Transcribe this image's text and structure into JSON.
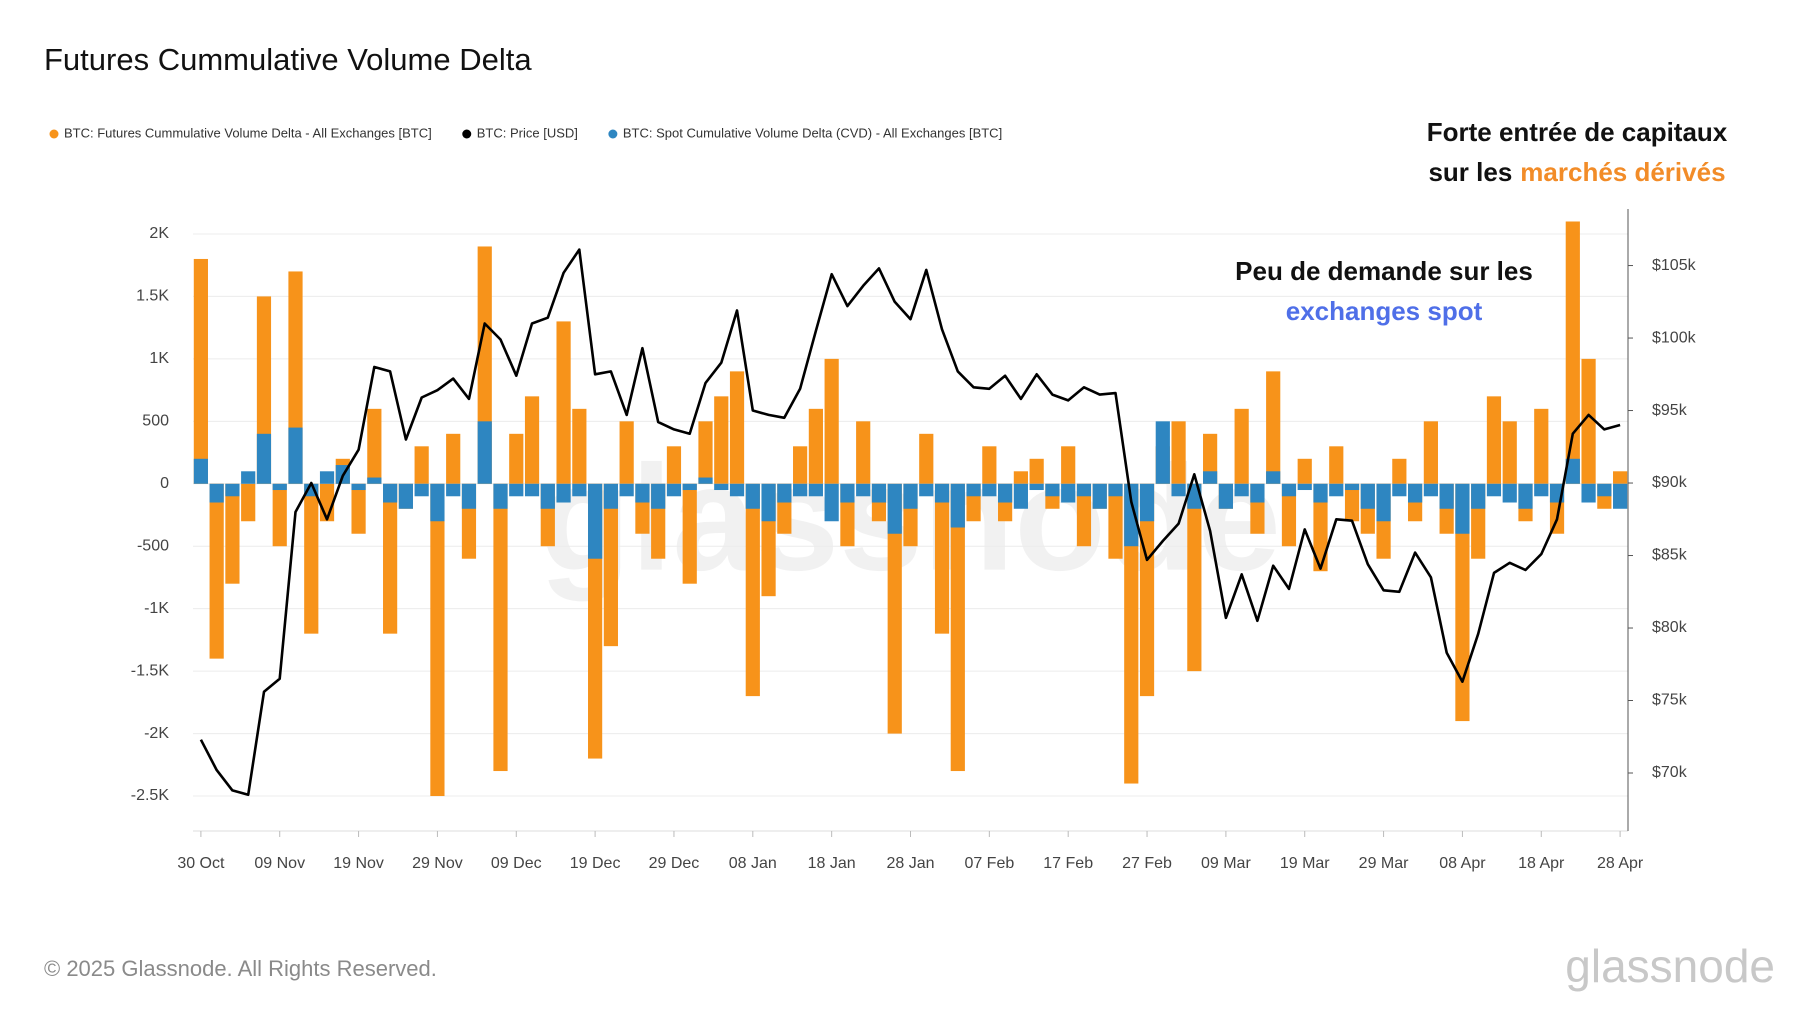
{
  "chart_data": {
    "type": "bar-line",
    "title": "Futures Cummulative Volume Delta",
    "watermark": "glassnode",
    "logo": "glassnode",
    "footer": "© 2025 Glassnode. All Rights Reserved.",
    "annotations": [
      {
        "lines": [
          [
            "Forte entrée de capitaux"
          ],
          [
            "sur les",
            "marchés dérivés"
          ]
        ],
        "colors": [
          "#111111",
          "#f28c28"
        ]
      },
      {
        "lines": [
          [
            "Peu de demande sur les"
          ],
          [
            "exchanges spot"
          ]
        ],
        "colors": [
          "#111111",
          "#4f6fe8"
        ]
      }
    ],
    "x": [
      0,
      2,
      4,
      6,
      8,
      10,
      12,
      14,
      16,
      18,
      20,
      22,
      24,
      26,
      28,
      30,
      32,
      34,
      36,
      38,
      40,
      42,
      44,
      46,
      48,
      50,
      52,
      54,
      56,
      58,
      60,
      62,
      64,
      66,
      68,
      70,
      72,
      74,
      76,
      78,
      80,
      82,
      84,
      86,
      88,
      90,
      92,
      94,
      96,
      98,
      100,
      102,
      104,
      106,
      108,
      110,
      112,
      114,
      116,
      118,
      120,
      122,
      124,
      126,
      128,
      130,
      132,
      134,
      136,
      138,
      140,
      142,
      144,
      146,
      148,
      150,
      152,
      154,
      156,
      158,
      160,
      162,
      164,
      166,
      168,
      170,
      172,
      174,
      176,
      178,
      180
    ],
    "xlim": [
      -1,
      181
    ],
    "xticks": [
      {
        "value": 0,
        "label": "30 Oct"
      },
      {
        "value": 10,
        "label": "09 Nov"
      },
      {
        "value": 20,
        "label": "19 Nov"
      },
      {
        "value": 30,
        "label": "29 Nov"
      },
      {
        "value": 40,
        "label": "09 Dec"
      },
      {
        "value": 50,
        "label": "19 Dec"
      },
      {
        "value": 60,
        "label": "29 Dec"
      },
      {
        "value": 70,
        "label": "08 Jan"
      },
      {
        "value": 80,
        "label": "18 Jan"
      },
      {
        "value": 90,
        "label": "28 Jan"
      },
      {
        "value": 100,
        "label": "07 Feb"
      },
      {
        "value": 110,
        "label": "17 Feb"
      },
      {
        "value": 120,
        "label": "27 Feb"
      },
      {
        "value": 130,
        "label": "09 Mar"
      },
      {
        "value": 140,
        "label": "19 Mar"
      },
      {
        "value": 150,
        "label": "29 Mar"
      },
      {
        "value": 160,
        "label": "08 Apr"
      },
      {
        "value": 170,
        "label": "18 Apr"
      },
      {
        "value": 180,
        "label": "28 Apr"
      }
    ],
    "ylim": [
      -2780,
      2200
    ],
    "yticks": [
      {
        "value": 2000,
        "label": "2K"
      },
      {
        "value": 1500,
        "label": "1.5K"
      },
      {
        "value": 1000,
        "label": "1K"
      },
      500,
      0,
      -500,
      {
        "value": -1000,
        "label": "-1K"
      },
      {
        "value": -1500,
        "label": "-1.5K"
      },
      {
        "value": -2000,
        "label": "-2K"
      },
      {
        "value": -2500,
        "label": "-2.5K"
      }
    ],
    "y2lim": [
      66000,
      108900
    ],
    "y2ticks": [
      {
        "value": 105000,
        "label": "$105k"
      },
      {
        "value": 100000,
        "label": "$100k"
      },
      {
        "value": 95000,
        "label": "$95k"
      },
      {
        "value": 90000,
        "label": "$90k"
      },
      {
        "value": 85000,
        "label": "$85k"
      },
      {
        "value": 80000,
        "label": "$80k"
      },
      {
        "value": 75000,
        "label": "$75k"
      },
      {
        "value": 70000,
        "label": "$70k"
      }
    ],
    "grid": true,
    "series": [
      {
        "name": "BTC: Futures Cummulative Volume Delta - All Exchanges [BTC]",
        "color": "#f7931a",
        "kind": "bar",
        "values": [
          1800,
          -1400,
          -800,
          -300,
          1500,
          -500,
          1700,
          -1200,
          -300,
          200,
          -400,
          600,
          -1200,
          -200,
          300,
          -2500,
          400,
          -600,
          1900,
          -2300,
          400,
          700,
          -500,
          1300,
          600,
          -2200,
          -1300,
          500,
          -400,
          -600,
          300,
          -800,
          500,
          700,
          900,
          -1700,
          -900,
          -400,
          300,
          600,
          1000,
          -500,
          500,
          -300,
          -2000,
          -500,
          400,
          -1200,
          -2300,
          -300,
          300,
          -300,
          100,
          200,
          -200,
          300,
          -500,
          -200,
          -600,
          -2400,
          -1700,
          300,
          500,
          -1500,
          400,
          -200,
          600,
          -400,
          900,
          -500,
          200,
          -700,
          300,
          -300,
          -400,
          -600,
          200,
          -300,
          500,
          -400,
          -1900,
          -600,
          700,
          500,
          -300,
          600,
          -400,
          2100,
          1000,
          -200,
          100
        ]
      },
      {
        "name": "BTC: Price [USD]",
        "color": "#000000",
        "kind": "line",
        "axis": "y2",
        "values": [
          72300,
          70200,
          68800,
          68500,
          75600,
          76500,
          88000,
          90000,
          87500,
          90500,
          92300,
          98000,
          97700,
          93000,
          95900,
          96400,
          97200,
          95800,
          101000,
          99900,
          97400,
          101000,
          101400,
          104500,
          106100,
          97500,
          97700,
          94700,
          99300,
          94200,
          93700,
          93400,
          96900,
          98300,
          101900,
          95000,
          94700,
          94500,
          96500,
          100500,
          104400,
          102200,
          103600,
          104800,
          102500,
          101300,
          104700,
          100600,
          97700,
          96600,
          96500,
          97400,
          95800,
          97500,
          96100,
          95700,
          96600,
          96100,
          96200,
          88700,
          84700,
          86000,
          87200,
          90600,
          86700,
          80700,
          83700,
          80500,
          84300,
          82700,
          86800,
          84100,
          87500,
          87400,
          84400,
          82600,
          82500,
          85200,
          83500,
          78300,
          76300,
          79600,
          83800,
          84500,
          84000,
          85100,
          87500,
          93400,
          94700,
          93700,
          94000
        ]
      },
      {
        "name": "BTC: Spot Cumulative Volume Delta (CVD) - All Exchanges [BTC]",
        "color": "#2e86c1",
        "kind": "bar",
        "values": [
          200,
          -150,
          -100,
          100,
          400,
          -50,
          450,
          -100,
          100,
          150,
          -50,
          50,
          -150,
          -200,
          -100,
          -300,
          -100,
          -200,
          500,
          -200,
          -100,
          -100,
          -200,
          -150,
          -100,
          -600,
          -200,
          -100,
          -150,
          -200,
          -100,
          -50,
          50,
          -50,
          -100,
          -200,
          -300,
          -150,
          -100,
          -100,
          -300,
          -150,
          -100,
          -150,
          -400,
          -200,
          -100,
          -150,
          -350,
          -100,
          -100,
          -150,
          -200,
          -50,
          -100,
          -150,
          -100,
          -200,
          -100,
          -500,
          -300,
          500,
          -100,
          -200,
          100,
          -200,
          -100,
          -150,
          100,
          -100,
          -50,
          -150,
          -100,
          -50,
          -200,
          -300,
          -100,
          -150,
          -100,
          -200,
          -400,
          -200,
          -100,
          -150,
          -200,
          -100,
          -150,
          200,
          -150,
          -100,
          -200
        ]
      }
    ]
  }
}
